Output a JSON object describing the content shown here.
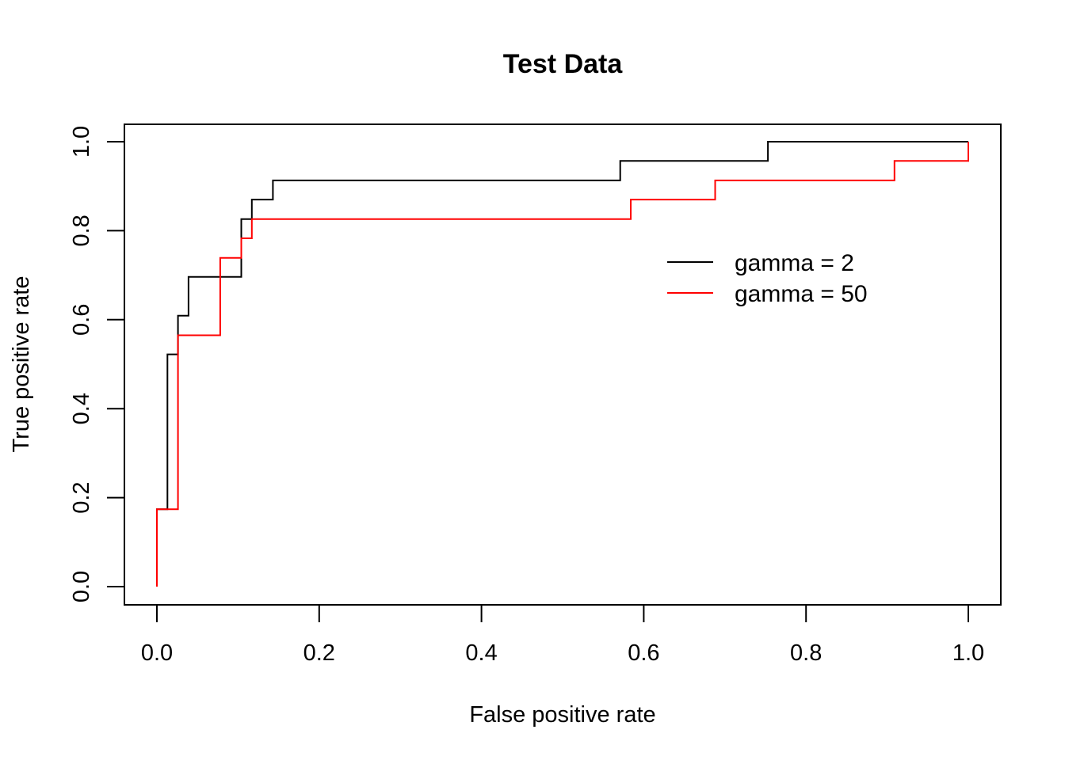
{
  "chart_data": {
    "type": "line",
    "title": "Test Data",
    "xlabel": "False positive rate",
    "ylabel": "True positive rate",
    "xlim": [
      0,
      1
    ],
    "ylim": [
      0,
      1
    ],
    "x_ticks": [
      "0.0",
      "0.2",
      "0.4",
      "0.6",
      "0.8",
      "1.0"
    ],
    "y_ticks": [
      "0.0",
      "0.2",
      "0.4",
      "0.6",
      "0.8",
      "1.0"
    ],
    "grid": false,
    "legend_position": "top-right",
    "series": [
      {
        "name": "gamma = 2",
        "color": "#000000",
        "x": [
          0.0,
          0.0,
          0.013,
          0.013,
          0.026,
          0.026,
          0.039,
          0.039,
          0.104,
          0.104,
          0.117,
          0.117,
          0.143,
          0.143,
          0.571,
          0.571,
          0.753,
          0.753,
          1.0,
          1.0
        ],
        "y": [
          0.0,
          0.174,
          0.174,
          0.522,
          0.522,
          0.609,
          0.609,
          0.696,
          0.696,
          0.826,
          0.826,
          0.87,
          0.87,
          0.913,
          0.913,
          0.957,
          0.957,
          1.0,
          1.0,
          1.0
        ]
      },
      {
        "name": "gamma = 50",
        "color": "#ff0000",
        "x": [
          0.0,
          0.0,
          0.026,
          0.026,
          0.078,
          0.078,
          0.104,
          0.104,
          0.117,
          0.117,
          0.584,
          0.584,
          0.688,
          0.688,
          0.909,
          0.909,
          1.0,
          1.0
        ],
        "y": [
          0.0,
          0.174,
          0.174,
          0.565,
          0.565,
          0.739,
          0.739,
          0.783,
          0.783,
          0.826,
          0.826,
          0.87,
          0.87,
          0.913,
          0.913,
          0.957,
          0.957,
          1.0
        ]
      }
    ]
  }
}
